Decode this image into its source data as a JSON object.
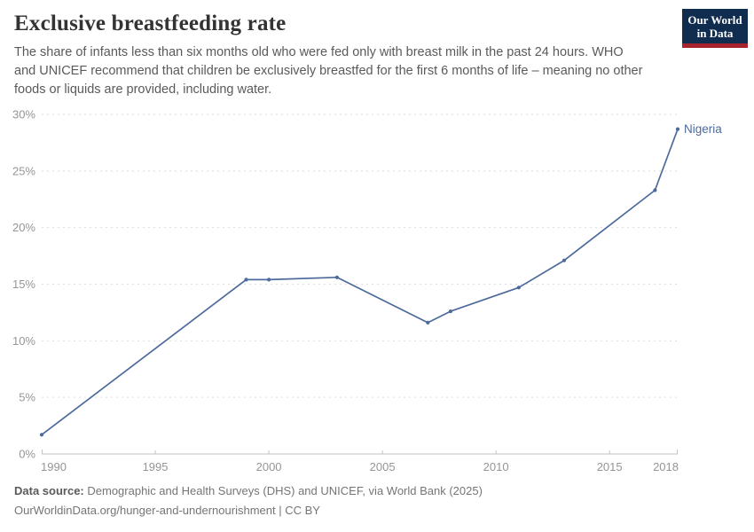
{
  "header": {
    "title": "Exclusive breastfeeding rate",
    "subtitle": "The share of infants less than six months old who were fed only with breast milk in the past 24 hours. WHO\nand UNICEF recommend that children be exclusively breastfed for the first 6 months of life – meaning no other\nfoods or liquids are provided, including water.",
    "logo": {
      "line1": "Our World",
      "line2": "in Data"
    }
  },
  "chart_data": {
    "type": "line",
    "title": "Exclusive breastfeeding rate",
    "xlabel": "",
    "ylabel": "",
    "xlim": [
      1990,
      2018
    ],
    "ylim": [
      0,
      30
    ],
    "x_ticks": [
      1990,
      1995,
      2000,
      2005,
      2010,
      2015,
      2018
    ],
    "y_ticks": [
      0,
      5,
      10,
      15,
      20,
      25,
      30
    ],
    "y_unit": "%",
    "grid": "horizontal-dashed",
    "legend_position": "end-of-line-label",
    "series": [
      {
        "name": "Nigeria",
        "color": "#4C6A9C",
        "points": [
          [
            1990,
            1.7
          ],
          [
            1999,
            15.4
          ],
          [
            2000,
            15.4
          ],
          [
            2003,
            15.6
          ],
          [
            2007,
            11.6
          ],
          [
            2008,
            12.6
          ],
          [
            2011,
            14.7
          ],
          [
            2013,
            17.1
          ],
          [
            2017,
            23.3
          ],
          [
            2018,
            28.7
          ]
        ]
      }
    ]
  },
  "footer": {
    "source_label": "Data source:",
    "source_text": "Demographic and Health Surveys (DHS) and UNICEF, via World Bank (2025)",
    "note_text": "OurWorldinData.org/hunger-and-undernourishment | CC BY"
  },
  "colors": {
    "accent_line": "#4C6A9C",
    "grid": "#dddddd",
    "axis": "#c3c3c3",
    "tick_label": "#959595",
    "title": "#333333",
    "subtitle": "#5a5a5a",
    "footer": "#757575",
    "logo_bg": "#102d50",
    "logo_red": "#a8232d"
  }
}
